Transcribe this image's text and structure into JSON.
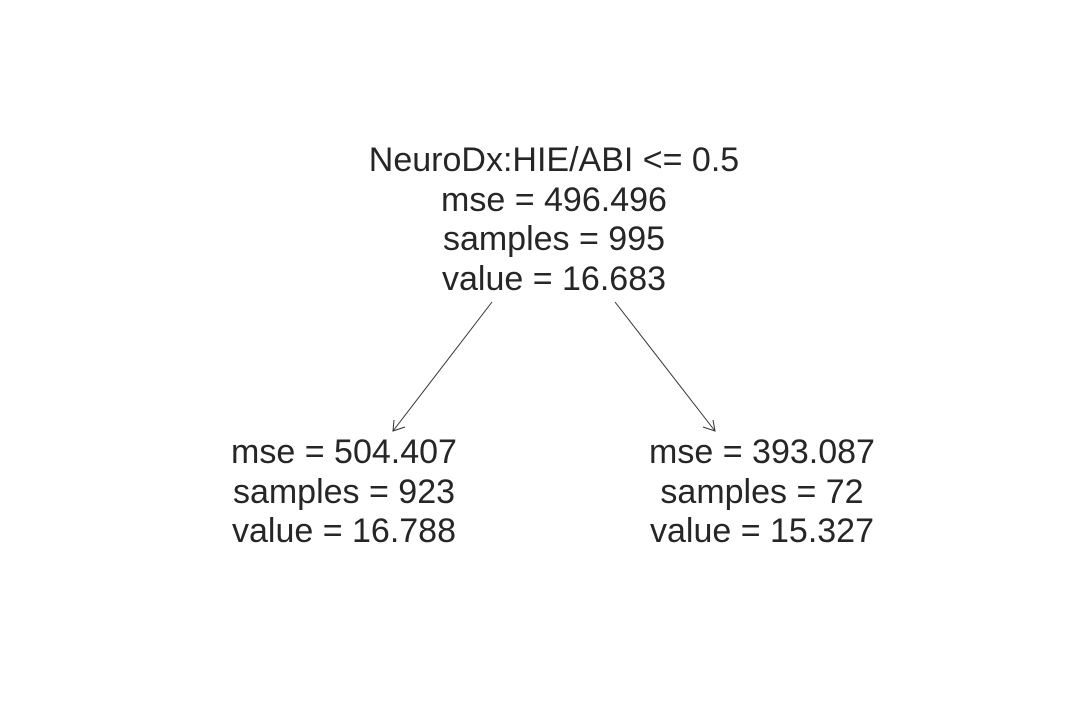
{
  "tree": {
    "root": {
      "split": "NeuroDx:HIE/ABI <= 0.5",
      "mse": "mse = 496.496",
      "samples": "samples = 995",
      "value": "value = 16.683"
    },
    "left": {
      "mse": "mse = 504.407",
      "samples": "samples = 923",
      "value": "value = 16.788"
    },
    "right": {
      "mse": "mse = 393.087",
      "samples": "samples = 72",
      "value": "value = 15.327"
    }
  },
  "colors": {
    "text": "#262626",
    "edge": "#333333",
    "background": "#ffffff"
  }
}
